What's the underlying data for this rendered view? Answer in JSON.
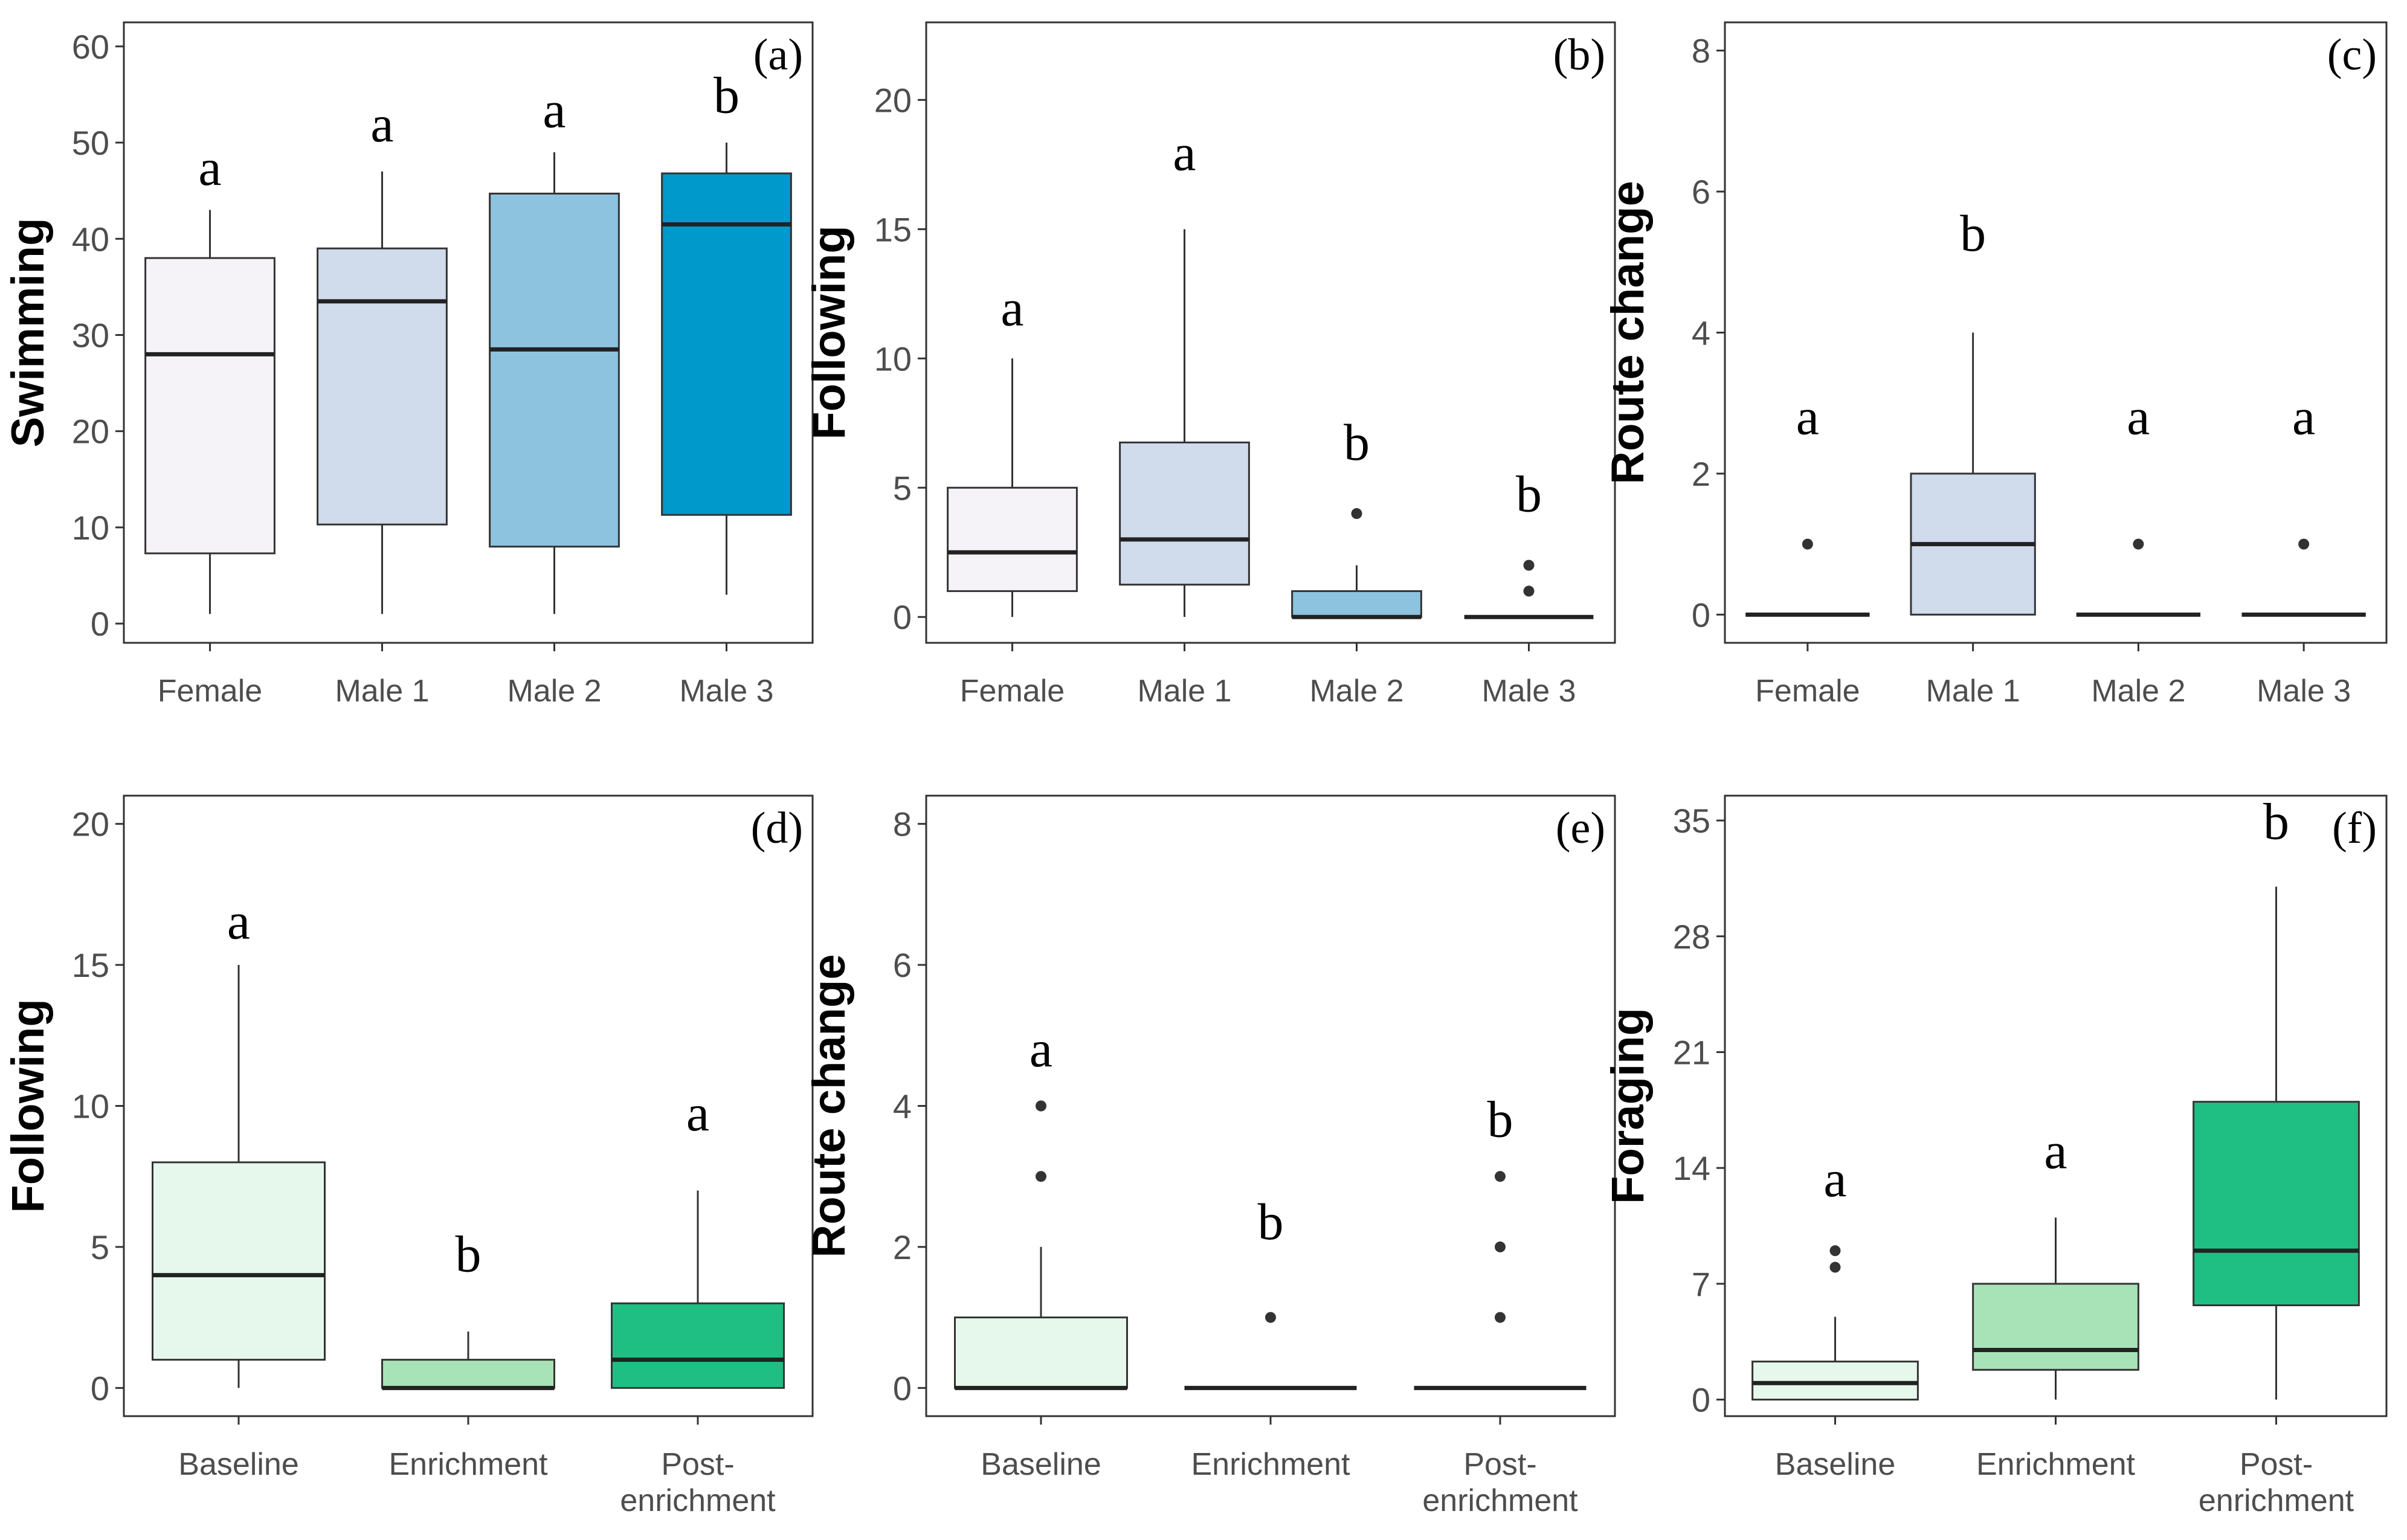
{
  "chart_data": [
    {
      "type": "box",
      "panel_label": "(a)",
      "ylabel": "Swimming",
      "ylim": [
        -2,
        62.5
      ],
      "yticks": [
        0,
        10,
        20,
        30,
        40,
        50,
        60
      ],
      "categories": [
        "Female",
        "Male 1",
        "Male 2",
        "Male 3"
      ],
      "colors": [
        "#f5f2f8",
        "#d0dbec",
        "#8ec3df",
        "#0099cc"
      ],
      "boxes": [
        {
          "q1": 7.3,
          "median": 28.0,
          "q3": 38.0,
          "wlow": 1,
          "whigh": 43,
          "outliers": []
        },
        {
          "q1": 10.3,
          "median": 33.5,
          "q3": 39.0,
          "wlow": 1,
          "whigh": 47,
          "outliers": []
        },
        {
          "q1": 8.0,
          "median": 28.5,
          "q3": 44.7,
          "wlow": 1,
          "whigh": 49,
          "outliers": []
        },
        {
          "q1": 11.3,
          "median": 41.5,
          "q3": 46.8,
          "wlow": 3,
          "whigh": 50,
          "outliers": []
        }
      ],
      "letters": [
        "a",
        "a",
        "a",
        "b"
      ],
      "letter_values": [
        47,
        51.5,
        53,
        54.5
      ]
    },
    {
      "type": "box",
      "panel_label": "(b)",
      "ylabel": "Following",
      "ylim": [
        -1,
        23
      ],
      "yticks": [
        0,
        5,
        10,
        15,
        20
      ],
      "categories": [
        "Female",
        "Male 1",
        "Male 2",
        "Male 3"
      ],
      "colors": [
        "#f5f2f8",
        "#d0dbec",
        "#8ec3df",
        "#0099cc"
      ],
      "boxes": [
        {
          "q1": 1.0,
          "median": 2.5,
          "q3": 5.0,
          "wlow": 0,
          "whigh": 10,
          "outliers": []
        },
        {
          "q1": 1.25,
          "median": 3.0,
          "q3": 6.75,
          "wlow": 0,
          "whigh": 15,
          "outliers": []
        },
        {
          "q1": 0,
          "median": 0,
          "q3": 1.0,
          "wlow": 0,
          "whigh": 2,
          "outliers": [
            4
          ]
        },
        {
          "q1": 0,
          "median": 0,
          "q3": 0,
          "wlow": 0,
          "whigh": 0,
          "outliers": [
            1,
            2
          ]
        }
      ],
      "letters": [
        "a",
        "a",
        "b",
        "b"
      ],
      "letter_values": [
        11.8,
        17.8,
        6.6,
        4.6
      ]
    },
    {
      "type": "box",
      "panel_label": "(c)",
      "ylabel": "Route change",
      "ylim": [
        -0.4,
        8.4
      ],
      "yticks": [
        0,
        2,
        4,
        6,
        8
      ],
      "categories": [
        "Female",
        "Male 1",
        "Male 2",
        "Male 3"
      ],
      "colors": [
        "#f5f2f8",
        "#d0dbec",
        "#8ec3df",
        "#0099cc"
      ],
      "boxes": [
        {
          "q1": 0,
          "median": 0,
          "q3": 0,
          "wlow": 0,
          "whigh": 0,
          "outliers": [
            1
          ]
        },
        {
          "q1": 0,
          "median": 1.0,
          "q3": 2.0,
          "wlow": 0,
          "whigh": 4,
          "outliers": []
        },
        {
          "q1": 0,
          "median": 0,
          "q3": 0,
          "wlow": 0,
          "whigh": 0,
          "outliers": [
            1
          ]
        },
        {
          "q1": 0,
          "median": 0,
          "q3": 0,
          "wlow": 0,
          "whigh": 0,
          "outliers": [
            1
          ]
        }
      ],
      "letters": [
        "a",
        "b",
        "a",
        "a"
      ],
      "letter_values": [
        2.75,
        5.35,
        2.75,
        2.75
      ]
    },
    {
      "type": "box",
      "panel_label": "(d)",
      "ylabel": "Following",
      "ylim": [
        -1,
        21
      ],
      "yticks": [
        0,
        5,
        10,
        15,
        20
      ],
      "categories": [
        "Baseline",
        "Enrichment",
        "Post-\nenrichment"
      ],
      "colors": [
        "#e6f7ec",
        "#a8e3b8",
        "#1fbf84"
      ],
      "boxes": [
        {
          "q1": 1.0,
          "median": 4.0,
          "q3": 8.0,
          "wlow": 0,
          "whigh": 15,
          "outliers": []
        },
        {
          "q1": 0,
          "median": 0,
          "q3": 1.0,
          "wlow": 0,
          "whigh": 2,
          "outliers": []
        },
        {
          "q1": 0,
          "median": 1.0,
          "q3": 3.0,
          "wlow": 0,
          "whigh": 7,
          "outliers": []
        }
      ],
      "letters": [
        "a",
        "b",
        "a"
      ],
      "letter_values": [
        16.4,
        4.6,
        9.6
      ]
    },
    {
      "type": "box",
      "panel_label": "(e)",
      "ylabel": "Route change",
      "ylim": [
        -0.4,
        8.4
      ],
      "yticks": [
        0,
        2,
        4,
        6,
        8
      ],
      "categories": [
        "Baseline",
        "Enrichment",
        "Post-\nenrichment"
      ],
      "colors": [
        "#e6f7ec",
        "#a8e3b8",
        "#1fbf84"
      ],
      "boxes": [
        {
          "q1": 0,
          "median": 0,
          "q3": 1.0,
          "wlow": 0,
          "whigh": 2,
          "outliers": [
            3,
            4
          ]
        },
        {
          "q1": 0,
          "median": 0,
          "q3": 0,
          "wlow": 0,
          "whigh": 0,
          "outliers": [
            1
          ]
        },
        {
          "q1": 0,
          "median": 0,
          "q3": 0,
          "wlow": 0,
          "whigh": 0,
          "outliers": [
            1,
            2,
            3
          ]
        }
      ],
      "letters": [
        "a",
        "b",
        "b"
      ],
      "letter_values": [
        4.75,
        2.3,
        3.75
      ]
    },
    {
      "type": "box",
      "panel_label": "(f)",
      "ylabel": "Foraging",
      "ylim": [
        -1,
        36.5
      ],
      "yticks": [
        0,
        7,
        14,
        21,
        28,
        35
      ],
      "categories": [
        "Baseline",
        "Enrichment",
        "Post-\nenrichment"
      ],
      "colors": [
        "#e6f7ec",
        "#a8e3b8",
        "#1fbf84"
      ],
      "boxes": [
        {
          "q1": 0,
          "median": 1.0,
          "q3": 2.3,
          "wlow": 0,
          "whigh": 5,
          "outliers": [
            8,
            9
          ]
        },
        {
          "q1": 1.8,
          "median": 3.0,
          "q3": 7.0,
          "wlow": 0,
          "whigh": 11,
          "outliers": []
        },
        {
          "q1": 5.7,
          "median": 9.0,
          "q3": 18.0,
          "wlow": 0,
          "whigh": 31,
          "outliers": []
        }
      ],
      "letters": [
        "a",
        "a",
        "b"
      ],
      "letter_values": [
        13.1,
        14.8,
        34.7
      ]
    }
  ]
}
